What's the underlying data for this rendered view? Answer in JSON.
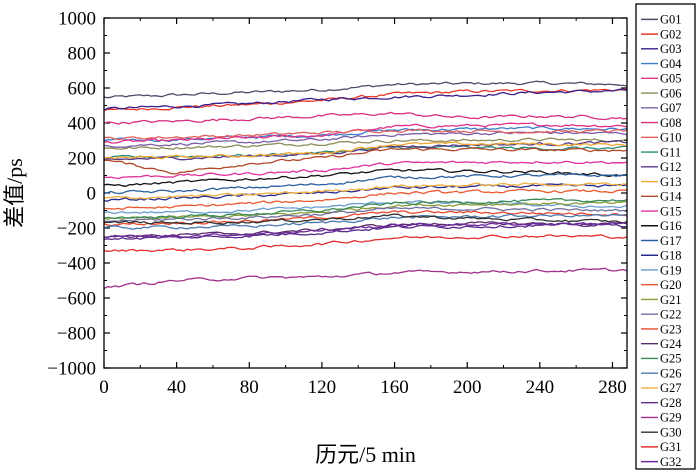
{
  "chart_data": {
    "type": "line",
    "title": "",
    "xlabel": "历元/5 min",
    "ylabel": "差值/ps",
    "xlim": [
      0,
      288
    ],
    "ylim": [
      -1000,
      1000
    ],
    "x_ticks": [
      0,
      40,
      80,
      120,
      160,
      200,
      240,
      280
    ],
    "y_ticks": [
      1000,
      800,
      600,
      400,
      200,
      0,
      -200,
      -400,
      -600,
      -800,
      -1000
    ],
    "x_tick_labels": [
      "0",
      "40",
      "80",
      "120",
      "160",
      "200",
      "240",
      "280"
    ],
    "y_tick_labels": [
      "1000",
      "800",
      "600",
      "400",
      "200",
      "0",
      "−200",
      "−400",
      "−600",
      "−800",
      "−1000"
    ],
    "grid": false,
    "legend_position": "right-outside",
    "x_sample_epochs": [
      0,
      40,
      80,
      120,
      160,
      200,
      240,
      288
    ],
    "series": [
      {
        "name": "G01",
        "color": "#4d4d6b",
        "values": [
          545,
          560,
          575,
          590,
          620,
          625,
          628,
          620
        ]
      },
      {
        "name": "G02",
        "color": "#e8372a",
        "values": [
          470,
          490,
          505,
          530,
          565,
          580,
          585,
          590
        ]
      },
      {
        "name": "G03",
        "color": "#3b1f8c",
        "values": [
          480,
          495,
          510,
          535,
          550,
          560,
          575,
          585
        ]
      },
      {
        "name": "G04",
        "color": "#3d7cc9",
        "values": [
          300,
          305,
          320,
          330,
          360,
          365,
          370,
          365
        ]
      },
      {
        "name": "G05",
        "color": "#e0308c",
        "values": [
          290,
          300,
          315,
          330,
          380,
          385,
          390,
          385
        ]
      },
      {
        "name": "G06",
        "color": "#8c8c5a",
        "values": [
          255,
          260,
          270,
          285,
          300,
          300,
          305,
          300
        ]
      },
      {
        "name": "G07",
        "color": "#7a5fa8",
        "values": [
          270,
          280,
          290,
          305,
          335,
          340,
          345,
          340
        ]
      },
      {
        "name": "G08",
        "color": "#d62f7d",
        "values": [
          400,
          410,
          425,
          440,
          455,
          430,
          440,
          430
        ]
      },
      {
        "name": "G10",
        "color": "#e06060",
        "values": [
          310,
          320,
          330,
          345,
          360,
          355,
          350,
          355
        ]
      },
      {
        "name": "G11",
        "color": "#2a8a7a",
        "values": [
          200,
          210,
          215,
          230,
          260,
          260,
          255,
          255
        ]
      },
      {
        "name": "G12",
        "color": "#5a3a8c",
        "values": [
          190,
          200,
          210,
          225,
          265,
          275,
          280,
          290
        ]
      },
      {
        "name": "G13",
        "color": "#f0a830",
        "values": [
          200,
          205,
          215,
          230,
          280,
          280,
          280,
          275
        ]
      },
      {
        "name": "G14",
        "color": "#b04a2a",
        "values": [
          190,
          115,
          170,
          200,
          250,
          250,
          245,
          245
        ]
      },
      {
        "name": "G15",
        "color": "#e0309c",
        "values": [
          90,
          100,
          110,
          130,
          170,
          175,
          180,
          175
        ]
      },
      {
        "name": "G16",
        "color": "#151515",
        "values": [
          40,
          60,
          80,
          100,
          130,
          125,
          120,
          100
        ]
      },
      {
        "name": "G17",
        "color": "#2a5fa0",
        "values": [
          0,
          10,
          30,
          50,
          90,
          95,
          100,
          100
        ]
      },
      {
        "name": "G18",
        "color": "#2a2a8c",
        "values": [
          -40,
          -30,
          -15,
          0,
          30,
          35,
          40,
          40
        ]
      },
      {
        "name": "G19",
        "color": "#6a9cd0",
        "values": [
          -110,
          -110,
          -100,
          -80,
          -50,
          -60,
          -70,
          -80
        ]
      },
      {
        "name": "G20",
        "color": "#e85a30",
        "values": [
          -90,
          -80,
          -60,
          -40,
          0,
          5,
          10,
          10
        ]
      },
      {
        "name": "G21",
        "color": "#8a9c3a",
        "values": [
          -150,
          -140,
          -130,
          -110,
          -70,
          -65,
          -60,
          -60
        ]
      },
      {
        "name": "G22",
        "color": "#7070a0",
        "values": [
          -160,
          -150,
          -140,
          -120,
          -90,
          -90,
          -95,
          -100
        ]
      },
      {
        "name": "G23",
        "color": "#e84a30",
        "values": [
          -180,
          -170,
          -160,
          -140,
          -110,
          -110,
          -115,
          -120
        ]
      },
      {
        "name": "G24",
        "color": "#5a2a6a",
        "values": [
          -250,
          -240,
          -230,
          -210,
          -180,
          -175,
          -175,
          -180
        ]
      },
      {
        "name": "G25",
        "color": "#3a8a5a",
        "values": [
          -140,
          -135,
          -120,
          -100,
          -60,
          -50,
          -45,
          -40
        ]
      },
      {
        "name": "G26",
        "color": "#4a7ab0",
        "values": [
          -200,
          -195,
          -190,
          -170,
          -140,
          -135,
          -130,
          -130
        ]
      },
      {
        "name": "G27",
        "color": "#f0b040",
        "values": [
          -30,
          -20,
          -10,
          10,
          40,
          45,
          50,
          50
        ]
      },
      {
        "name": "G28",
        "color": "#5a2a8c",
        "values": [
          -260,
          -255,
          -245,
          -225,
          -195,
          -190,
          -185,
          -185
        ]
      },
      {
        "name": "G29",
        "color": "#a0308c",
        "values": [
          -540,
          -500,
          -485,
          -480,
          -455,
          -450,
          -445,
          -440
        ]
      },
      {
        "name": "G30",
        "color": "#303030",
        "values": [
          -170,
          -170,
          -165,
          -150,
          -130,
          -145,
          -155,
          -165
        ]
      },
      {
        "name": "G31",
        "color": "#e03030",
        "values": [
          -330,
          -325,
          -315,
          -290,
          -255,
          -250,
          -245,
          -250
        ]
      },
      {
        "name": "G32",
        "color": "#6a2a9c",
        "values": [
          -250,
          -245,
          -235,
          -215,
          -185,
          -180,
          -175,
          -175
        ]
      }
    ]
  }
}
